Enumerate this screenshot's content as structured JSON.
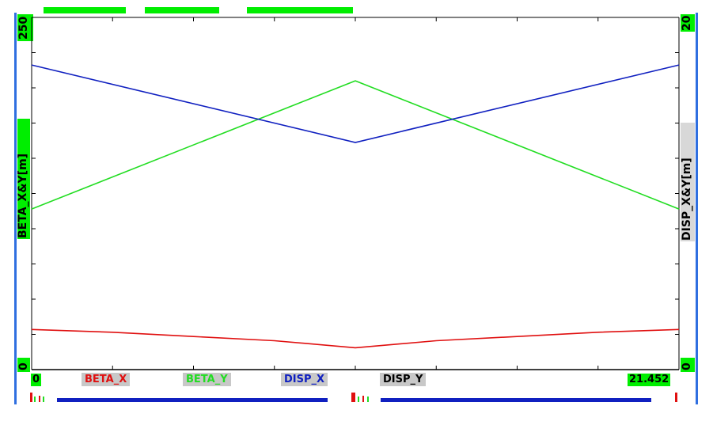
{
  "chart_data": {
    "type": "line",
    "x": [
      0,
      10.726,
      21.452
    ],
    "xlim": [
      0,
      21.452
    ],
    "x_tick_labels": [
      "0",
      "21.452"
    ],
    "left_axis": {
      "label": "BETA_X&Y[m]",
      "ylim": [
        0,
        250
      ],
      "tick_labels": [
        "250",
        "0"
      ]
    },
    "right_axis": {
      "label": "DISP_X&Y[m]",
      "ylim": [
        0,
        20
      ],
      "tick_labels": [
        "20",
        "0"
      ]
    },
    "series": [
      {
        "name": "BETA_X",
        "axis": "left",
        "color": "#e01010",
        "x": [
          0,
          2.681,
          5.363,
          8.044,
          10.726,
          13.407,
          16.089,
          18.77,
          21.452
        ],
        "values": [
          28.5,
          26.5,
          23.5,
          20.5,
          15.5,
          20.5,
          23.5,
          26.5,
          28.5
        ]
      },
      {
        "name": "BETA_Y",
        "axis": "left",
        "color": "#22dd22",
        "x": [
          0,
          10.726,
          21.452
        ],
        "values": [
          114,
          205,
          114
        ]
      },
      {
        "name": "DISP_X",
        "axis": "right",
        "color": "#1020c0",
        "x": [
          0,
          10.726,
          21.452
        ],
        "values": [
          17.3,
          12.9,
          17.3
        ]
      },
      {
        "name": "DISP_Y",
        "axis": "right",
        "color": "#000000",
        "x": [
          0,
          21.452
        ],
        "values": [
          0,
          0
        ]
      }
    ],
    "grid": false,
    "legend_position": "bottom"
  },
  "colors": {
    "frame_blue": "#2f6fe0",
    "label_green": "#00ee00",
    "legend_bg": "#c8c8c8"
  }
}
